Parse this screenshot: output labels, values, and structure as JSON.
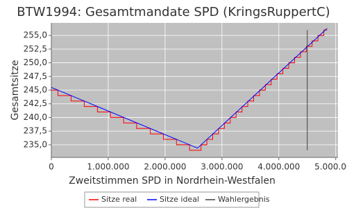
{
  "chart_data": {
    "type": "line",
    "title": "BTW1994: Gesamtmandate SPD (KringsRuppertC)",
    "x_label": "Zweitstimmen SPD in Nordrhein-Westfalen",
    "y_label": "Gesamtsitze",
    "xlim": [
      0,
      5040000
    ],
    "ylim": [
      232.7,
      257.3
    ],
    "xticks": [
      0,
      {
        "value": 1000000,
        "label": "1.000.000"
      },
      {
        "value": 2000000,
        "label": "2.000.000"
      },
      {
        "value": 3000000,
        "label": "3.000.000"
      },
      {
        "value": 4000000,
        "label": "4.000.000"
      },
      {
        "value": 5000000,
        "label": "5.000.000"
      }
    ],
    "yticks": [
      {
        "value": 235,
        "label": "235,0"
      },
      {
        "value": 237.5,
        "label": "237,5"
      },
      {
        "value": 240,
        "label": "240,0"
      },
      {
        "value": 242.5,
        "label": "242,5"
      },
      {
        "value": 245,
        "label": "245,0"
      },
      {
        "value": 247.5,
        "label": "247,5"
      },
      {
        "value": 250,
        "label": "250,0"
      },
      {
        "value": 252.5,
        "label": "252,5"
      },
      {
        "value": 255,
        "label": "255,0"
      }
    ],
    "grid": true,
    "legend": "bottom",
    "series": [
      {
        "name": "Sitze real",
        "color": "#ff0000",
        "step": "post",
        "x": [
          0,
          116000,
          347000,
          579000,
          810000,
          1040000,
          1270000,
          1500000,
          1740000,
          1970000,
          2200000,
          2430000,
          2632000,
          2735000,
          2837000,
          2940000,
          3043000,
          3146000,
          3249000,
          3352000,
          3454000,
          3557000,
          3660000,
          3763000,
          3866000,
          3968000,
          4071000,
          4174000,
          4277000,
          4380000,
          4482000,
          4585000,
          4688000,
          4791000,
          4850000
        ],
        "values": [
          245,
          244,
          243,
          242,
          241,
          240,
          239,
          238,
          237,
          236,
          235,
          234,
          235,
          236,
          237,
          238,
          239,
          240,
          241,
          242,
          243,
          244,
          245,
          246,
          247,
          248,
          249,
          250,
          251,
          252,
          253,
          254,
          255,
          256,
          256
        ]
      },
      {
        "name": "Sitze ideal",
        "color": "#0000ff",
        "x": [
          0,
          2570000,
          4850000
        ],
        "values": [
          245.5,
          234.4,
          256.3
        ]
      },
      {
        "name": "Wahlergebnis",
        "color": "#404040",
        "x": [
          4500000,
          4500000
        ],
        "values": [
          256,
          234
        ]
      }
    ]
  }
}
